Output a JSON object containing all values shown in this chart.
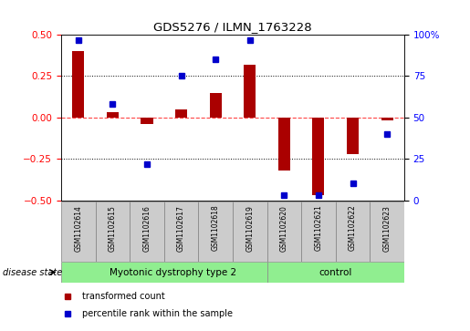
{
  "title": "GDS5276 / ILMN_1763228",
  "samples": [
    "GSM1102614",
    "GSM1102615",
    "GSM1102616",
    "GSM1102617",
    "GSM1102618",
    "GSM1102619",
    "GSM1102620",
    "GSM1102621",
    "GSM1102622",
    "GSM1102623"
  ],
  "transformed_count": [
    0.4,
    0.03,
    -0.04,
    0.05,
    0.15,
    0.32,
    -0.32,
    -0.47,
    -0.22,
    -0.02
  ],
  "percentile_rank": [
    97,
    58,
    22,
    75,
    85,
    97,
    3,
    3,
    10,
    40
  ],
  "group1_label": "Myotonic dystrophy type 2",
  "group1_count": 6,
  "group2_label": "control",
  "group2_count": 4,
  "group_color": "#90EE90",
  "ylim_left": [
    -0.5,
    0.5
  ],
  "ylim_right": [
    0,
    100
  ],
  "yticks_left": [
    -0.5,
    -0.25,
    0.0,
    0.25,
    0.5
  ],
  "yticks_right": [
    0,
    25,
    50,
    75,
    100
  ],
  "yticklabels_right": [
    "0",
    "25",
    "50",
    "75",
    "100%"
  ],
  "bar_color": "#AA0000",
  "dot_color": "#0000CC",
  "hline_color": "#FF4444",
  "dotline_color": "#888888",
  "background_color": "#ffffff",
  "label_box_color": "#cccccc",
  "legend_bar_label": "transformed count",
  "legend_dot_label": "percentile rank within the sample",
  "disease_state_label": "disease state"
}
